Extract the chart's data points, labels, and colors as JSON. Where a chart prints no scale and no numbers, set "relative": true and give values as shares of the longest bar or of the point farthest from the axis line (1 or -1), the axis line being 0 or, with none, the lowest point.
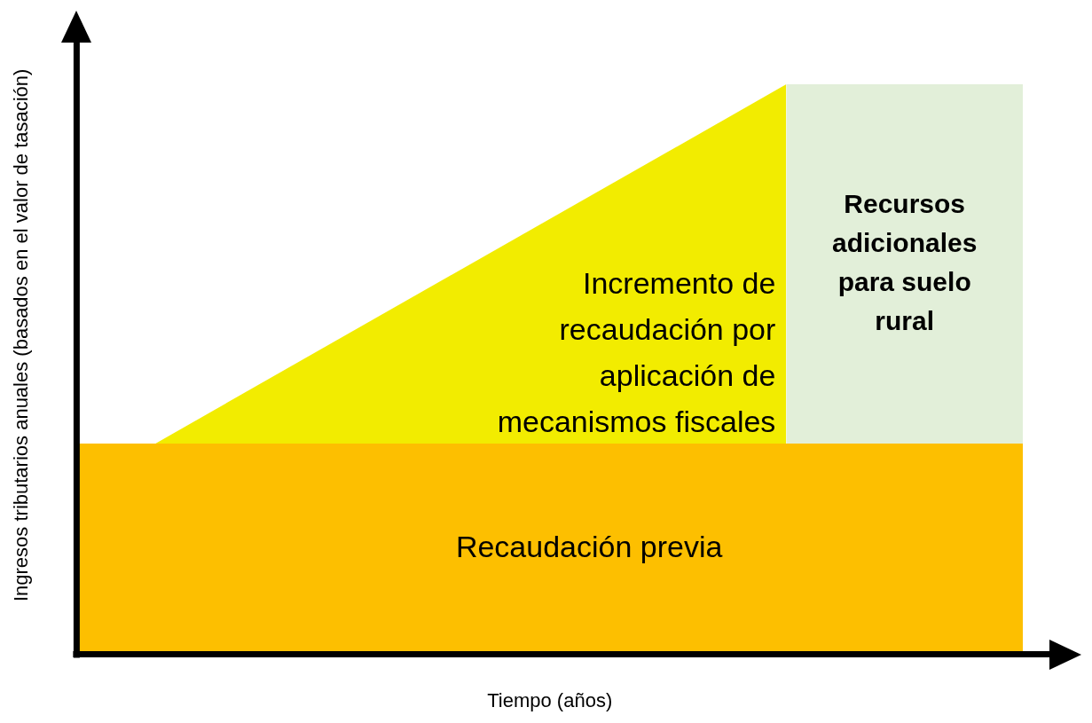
{
  "chart_data": {
    "type": "area",
    "relative": true,
    "xlabel": "Tiempo (años)",
    "ylabel": "Ingresos tributarios anuales (basados en el valor de tasación)",
    "categories": [
      null,
      null,
      null,
      null,
      null,
      null,
      null,
      null,
      null,
      null,
      null,
      null,
      null
    ],
    "legend": false,
    "grid": false,
    "series": [
      {
        "name": "Recaudación previa",
        "color": "#fdbf00",
        "values": [
          0.37,
          0.37,
          0.37,
          0.37,
          0.37,
          0.37,
          0.37,
          0.37,
          0.37,
          0.37,
          0.37,
          0.37,
          0.37
        ]
      },
      {
        "name": "Incremento de recaudación por aplicación de mecanismos fiscales",
        "color": "#f2ec00",
        "values": [
          null,
          0.37,
          null,
          null,
          null,
          null,
          null,
          null,
          null,
          1,
          null,
          null,
          null
        ]
      },
      {
        "name": "Recursos adicionales para suelo rural",
        "color": "#e2efd9",
        "values": [
          null,
          null,
          null,
          null,
          null,
          null,
          null,
          null,
          null,
          1,
          1,
          1,
          1
        ]
      }
    ]
  }
}
